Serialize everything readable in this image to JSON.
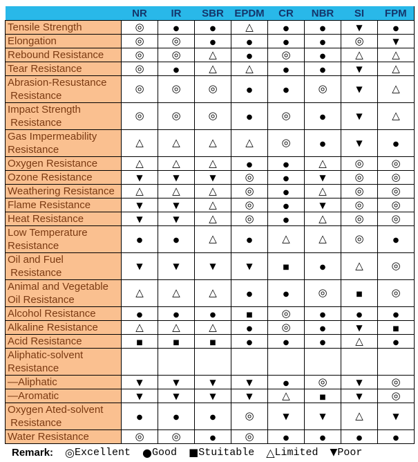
{
  "header": {
    "columns": [
      "NR",
      "IR",
      "SBR",
      "EPDM",
      "CR",
      "NBR",
      "SI",
      "FPM"
    ]
  },
  "symbols": {
    "E": "◎",
    "G": "●",
    "S": "■",
    "L": "△",
    "P": "▼"
  },
  "rows": [
    {
      "label": "Tensile Strength",
      "values": [
        "E",
        "G",
        "G",
        "L",
        "G",
        "G",
        "P",
        "G"
      ]
    },
    {
      "label": "Elongation",
      "values": [
        "E",
        "E",
        "G",
        "G",
        "G",
        "G",
        "E",
        "P"
      ]
    },
    {
      "label": "Rebound Resistance",
      "values": [
        "E",
        "E",
        "L",
        "G",
        "E",
        "G",
        "L",
        "L"
      ]
    },
    {
      "label": "Tear Resistance",
      "values": [
        "E",
        "G",
        "L",
        "L",
        "G",
        "G",
        "P",
        "L"
      ]
    },
    {
      "label": "Abrasion-Resustance\n Resistance",
      "values": [
        "E",
        "E",
        "E",
        "G",
        "G",
        "E",
        "P",
        "L"
      ]
    },
    {
      "label": "Impact Strength\n Resistance",
      "values": [
        "E",
        "E",
        "E",
        "G",
        "E",
        "G",
        "P",
        "L"
      ]
    },
    {
      "label": "Gas Impermeability\nResistance",
      "values": [
        "L",
        "L",
        "L",
        "L",
        "E",
        "G",
        "P",
        "G"
      ]
    },
    {
      "label": "Oxygen Resistance",
      "values": [
        "L",
        "L",
        "L",
        "G",
        "G",
        "L",
        "E",
        "E"
      ]
    },
    {
      "label": "Ozone Resistance",
      "values": [
        "P",
        "P",
        "P",
        "E",
        "G",
        "P",
        "E",
        "E"
      ]
    },
    {
      "label": "Weathering Resistance",
      "values": [
        "L",
        "L",
        "L",
        "E",
        "G",
        "L",
        "E",
        "E"
      ]
    },
    {
      "label": "Flame Resistance",
      "values": [
        "P",
        "P",
        "L",
        "E",
        "G",
        "P",
        "E",
        "E"
      ]
    },
    {
      "label": "Heat Resistance",
      "values": [
        "P",
        "P",
        "L",
        "E",
        "G",
        "L",
        "E",
        "E"
      ]
    },
    {
      "label": "Low Temperature\nResistance",
      "values": [
        "G",
        "G",
        "L",
        "G",
        "L",
        "L",
        "E",
        "G"
      ]
    },
    {
      "label": "Oil and Fuel\n Resistance",
      "values": [
        "P",
        "P",
        "P",
        "P",
        "S",
        "G",
        "L",
        "E"
      ]
    },
    {
      "label": "Animal and Vegetable\nOil Resistance",
      "values": [
        "L",
        "L",
        "L",
        "G",
        "G",
        "E",
        "S",
        "E"
      ]
    },
    {
      "label": "Alcohol Resistance",
      "values": [
        "G",
        "G",
        "G",
        "S",
        "E",
        "G",
        "G",
        "G"
      ]
    },
    {
      "label": "Alkaline Resistance",
      "values": [
        "L",
        "L",
        "L",
        "G",
        "E",
        "G",
        "P",
        "S"
      ]
    },
    {
      "label": "Acid Resistance",
      "values": [
        "S",
        "S",
        "S",
        "G",
        "G",
        "G",
        "L",
        "G"
      ]
    },
    {
      "label": "Aliphatic-solvent\nResistance",
      "values": [
        "",
        "",
        "",
        "",
        "",
        "",
        "",
        ""
      ]
    },
    {
      "label": "—Aliphatic",
      "values": [
        "P",
        "P",
        "P",
        "P",
        "G",
        "E",
        "P",
        "E"
      ]
    },
    {
      "label": "—Aromatic",
      "values": [
        "P",
        "P",
        "P",
        "P",
        "L",
        "S",
        "P",
        "E"
      ]
    },
    {
      "label": "Oxygen Ated-solvent\n Resistance",
      "values": [
        "G",
        "G",
        "G",
        "E",
        "P",
        "P",
        "L",
        "P"
      ]
    },
    {
      "label": "Water Resistance",
      "values": [
        "E",
        "E",
        "G",
        "E",
        "G",
        "G",
        "G",
        "G"
      ]
    }
  ],
  "legend": {
    "remark_label": "Remark:",
    "items": [
      {
        "key": "E",
        "symbol": "◎",
        "label": "Excellent"
      },
      {
        "key": "G",
        "symbol": "●",
        "label": "Good"
      },
      {
        "key": "S",
        "symbol": "■",
        "label": "Stuitable"
      },
      {
        "key": "L",
        "symbol": "△",
        "label": "Limited"
      },
      {
        "key": "P",
        "symbol": "▼",
        "label": "Poor"
      }
    ]
  },
  "colors": {
    "page_bg": "#ffffff",
    "header_bg": "#29b8e9",
    "header_text": "#14366b",
    "label_bg": "#fac090",
    "label_text": "#7b3a12",
    "cell_bg": "#ffffff",
    "grid": "#000000",
    "symbol": "#000000"
  }
}
